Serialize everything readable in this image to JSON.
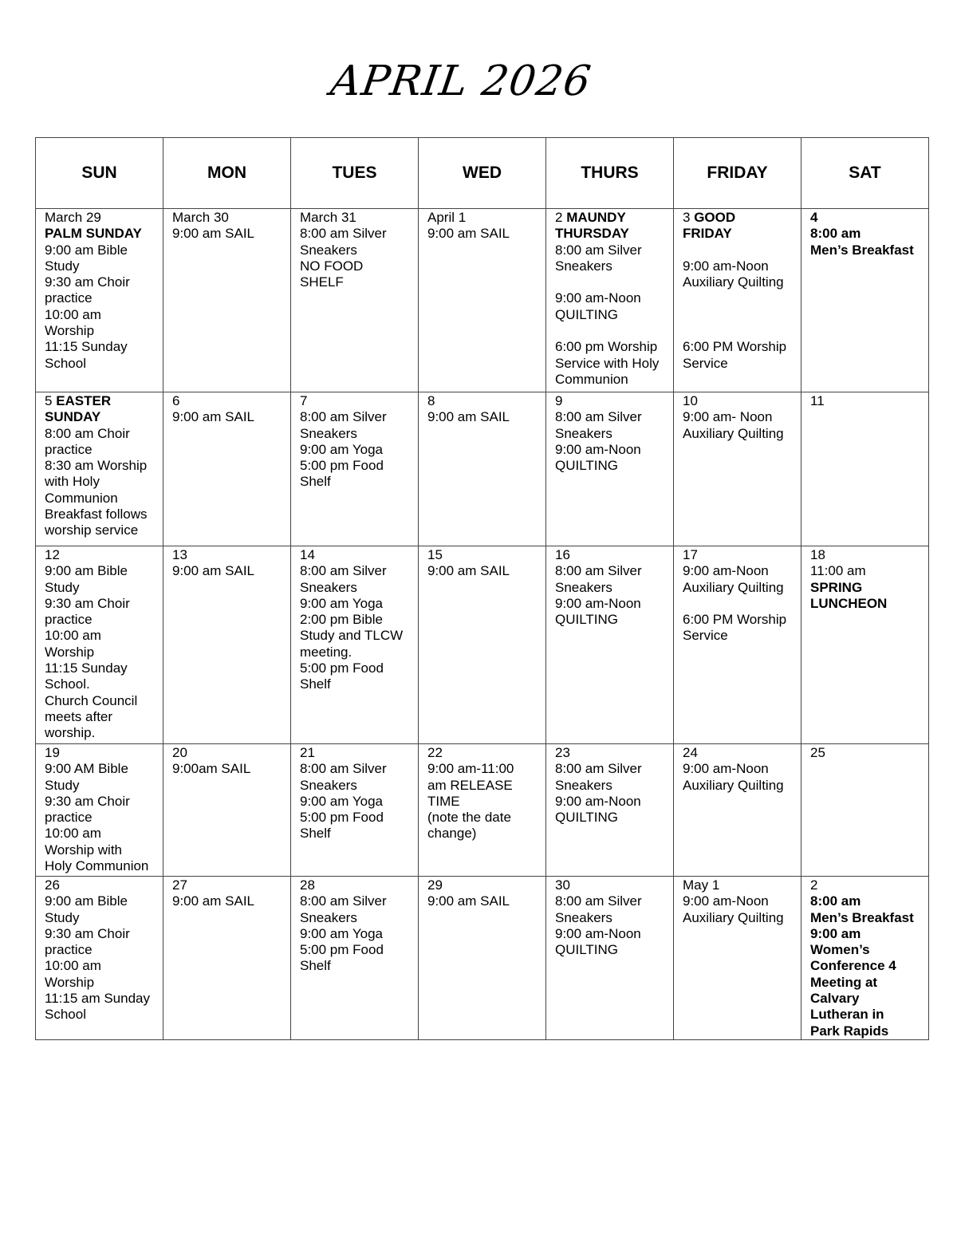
{
  "title": "APRIL 2026",
  "headers": [
    "SUN",
    "MON",
    "TUES",
    "WED",
    "THURS",
    "FRIDAY",
    "SAT"
  ],
  "weeks": [
    [
      [
        {
          "t": "March 29"
        },
        {
          "b": "PALM SUNDAY"
        },
        {
          "t": "9:00 am Bible"
        },
        {
          "t": "Study"
        },
        {
          "t": "9:30 am Choir"
        },
        {
          "t": "practice"
        },
        {
          "t": "10:00 am"
        },
        {
          "t": "Worship"
        },
        {
          "t": "11:15 Sunday"
        },
        {
          "t": "School"
        }
      ],
      [
        {
          "t": "March 30"
        },
        {
          "t": "9:00 am SAIL"
        }
      ],
      [
        {
          "t": "March 31"
        },
        {
          "t": "8:00 am Silver"
        },
        {
          "t": "Sneakers"
        },
        {
          "t": "NO FOOD"
        },
        {
          "t": "SHELF"
        }
      ],
      [
        {
          "t": "April 1"
        },
        {
          "t": "9:00 am SAIL"
        }
      ],
      [
        {
          "t": "2 ",
          "b": "MAUNDY"
        },
        {
          "b": "THURSDAY"
        },
        {
          "t": "8:00 am Silver"
        },
        {
          "t": "Sneakers"
        },
        {
          "t": ""
        },
        {
          "t": "9:00 am-Noon"
        },
        {
          "t": "QUILTING"
        },
        {
          "t": ""
        },
        {
          "t": "6:00 pm Worship"
        },
        {
          "t": "Service with Holy"
        },
        {
          "t": "Communion"
        }
      ],
      [
        {
          "t": "3 ",
          "b": "GOOD"
        },
        {
          "b": "FRIDAY"
        },
        {
          "t": ""
        },
        {
          "t": "9:00 am-Noon"
        },
        {
          "t": "Auxiliary Quilting"
        },
        {
          "t": ""
        },
        {
          "t": ""
        },
        {
          "t": ""
        },
        {
          "t": "6:00 PM Worship"
        },
        {
          "t": "Service"
        }
      ],
      [
        {
          "b": "4"
        },
        {
          "b": "8:00 am"
        },
        {
          "b": "Men’s Breakfast"
        }
      ]
    ],
    [
      [
        {
          "t": "5 ",
          "b": "EASTER"
        },
        {
          "b": "SUNDAY"
        },
        {
          "t": "8:00 am Choir"
        },
        {
          "t": "practice"
        },
        {
          "t": "8:30 am Worship"
        },
        {
          "t": "with Holy"
        },
        {
          "t": "Communion"
        },
        {
          "t": "Breakfast follows"
        },
        {
          "t": "worship service"
        }
      ],
      [
        {
          "t": "6"
        },
        {
          "t": "9:00 am SAIL"
        }
      ],
      [
        {
          "t": "7"
        },
        {
          "t": "8:00 am Silver"
        },
        {
          "t": "Sneakers"
        },
        {
          "t": "9:00 am Yoga"
        },
        {
          "t": "5:00 pm Food"
        },
        {
          "t": "Shelf"
        }
      ],
      [
        {
          "t": "8"
        },
        {
          "t": "9:00 am SAIL"
        }
      ],
      [
        {
          "t": "9"
        },
        {
          "t": "8:00 am Silver"
        },
        {
          "t": "Sneakers"
        },
        {
          "t": "9:00 am-Noon"
        },
        {
          "t": "QUILTING"
        }
      ],
      [
        {
          "t": "10"
        },
        {
          "t": "9:00 am- Noon"
        },
        {
          "t": "Auxiliary Quilting"
        }
      ],
      [
        {
          "t": "11"
        }
      ]
    ],
    [
      [
        {
          "t": "12"
        },
        {
          "t": "9:00 am Bible"
        },
        {
          "t": "Study"
        },
        {
          "t": "9:30 am Choir"
        },
        {
          "t": "practice"
        },
        {
          "t": "10:00 am"
        },
        {
          "t": "Worship"
        },
        {
          "t": "11:15 Sunday"
        },
        {
          "t": "School."
        },
        {
          "t": "Church Council"
        },
        {
          "t": "meets after"
        },
        {
          "t": "worship."
        }
      ],
      [
        {
          "t": "13"
        },
        {
          "t": "9:00 am SAIL"
        }
      ],
      [
        {
          "t": "14"
        },
        {
          "t": "8:00 am Silver"
        },
        {
          "t": "Sneakers"
        },
        {
          "t": "9:00 am Yoga"
        },
        {
          "t": "2:00 pm Bible"
        },
        {
          "t": "Study and TLCW"
        },
        {
          "t": "meeting."
        },
        {
          "t": "5:00 pm Food"
        },
        {
          "t": "Shelf"
        }
      ],
      [
        {
          "t": "15"
        },
        {
          "t": "9:00 am SAIL"
        }
      ],
      [
        {
          "t": "16"
        },
        {
          "t": "8:00 am Silver"
        },
        {
          "t": "Sneakers"
        },
        {
          "t": "9:00 am-Noon"
        },
        {
          "t": "QUILTING"
        }
      ],
      [
        {
          "t": "17"
        },
        {
          "t": "9:00 am-Noon"
        },
        {
          "t": "Auxiliary Quilting"
        },
        {
          "t": ""
        },
        {
          "t": "6:00 PM Worship"
        },
        {
          "t": "Service"
        }
      ],
      [
        {
          "t": "18"
        },
        {
          "t": "11:00 am"
        },
        {
          "b": "SPRING"
        },
        {
          "b": "LUNCHEON"
        }
      ]
    ],
    [
      [
        {
          "t": "19"
        },
        {
          "t": "9:00 AM Bible"
        },
        {
          "t": "Study"
        },
        {
          "t": "9:30 am Choir"
        },
        {
          "t": "practice"
        },
        {
          "t": "10:00 am"
        },
        {
          "t": "Worship with"
        },
        {
          "t": "Holy Communion"
        }
      ],
      [
        {
          "t": "20"
        },
        {
          "t": "9:00am SAIL"
        }
      ],
      [
        {
          "t": "21"
        },
        {
          "t": "8:00 am Silver"
        },
        {
          "t": "Sneakers"
        },
        {
          "t": "9:00 am Yoga"
        },
        {
          "t": "5:00 pm Food"
        },
        {
          "t": "Shelf"
        }
      ],
      [
        {
          "t": "22"
        },
        {
          "t": "9:00 am-11:00"
        },
        {
          "t": "am RELEASE"
        },
        {
          "t": "TIME"
        },
        {
          "t": "(note the date"
        },
        {
          "t": "change)"
        }
      ],
      [
        {
          "t": "23"
        },
        {
          "t": "8:00 am Silver"
        },
        {
          "t": "Sneakers"
        },
        {
          "t": "9:00 am-Noon"
        },
        {
          "t": "QUILTING"
        }
      ],
      [
        {
          "t": "24"
        },
        {
          "t": "9:00 am-Noon"
        },
        {
          "t": "Auxiliary Quilting"
        }
      ],
      [
        {
          "t": "25"
        }
      ]
    ],
    [
      [
        {
          "t": "26"
        },
        {
          "t": "9:00 am Bible"
        },
        {
          "t": "Study"
        },
        {
          "t": "9:30 am Choir"
        },
        {
          "t": "practice"
        },
        {
          "t": "10:00 am"
        },
        {
          "t": "Worship"
        },
        {
          "t": "11:15 am Sunday"
        },
        {
          "t": "School"
        }
      ],
      [
        {
          "t": "27"
        },
        {
          "t": "9:00 am SAIL"
        }
      ],
      [
        {
          "t": "28"
        },
        {
          "t": "8:00 am Silver"
        },
        {
          "t": "Sneakers"
        },
        {
          "t": "9:00 am Yoga"
        },
        {
          "t": "5:00 pm Food"
        },
        {
          "t": "Shelf"
        }
      ],
      [
        {
          "t": "29"
        },
        {
          "t": "9:00 am SAIL"
        }
      ],
      [
        {
          "t": "30"
        },
        {
          "t": "8:00 am Silver"
        },
        {
          "t": "Sneakers"
        },
        {
          "t": "9:00 am-Noon"
        },
        {
          "t": "QUILTING"
        }
      ],
      [
        {
          "t": "May 1"
        },
        {
          "t": "9:00 am-Noon"
        },
        {
          "t": "Auxiliary Quilting"
        }
      ],
      [
        {
          "t": "2"
        },
        {
          "b": "8:00 am"
        },
        {
          "b": "Men’s Breakfast"
        },
        {
          "b": "9:00 am"
        },
        {
          "b": "Women’s"
        },
        {
          "b": "Conference 4"
        },
        {
          "b": "Meeting at"
        },
        {
          "b": "Calvary"
        },
        {
          "b": "Lutheran in"
        },
        {
          "b": "Park Rapids"
        }
      ]
    ]
  ]
}
